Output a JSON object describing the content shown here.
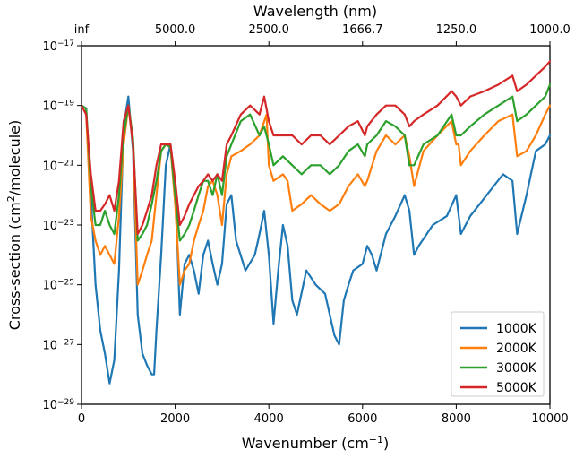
{
  "chart_data": {
    "type": "line",
    "title": "",
    "xlabel": "Wavenumber (cm$^{-1}$)",
    "ylabel": "Cross-section (cm$^{2}$/molecule)",
    "x2label": "Wavelength (nm)",
    "xlim": [
      0,
      10000
    ],
    "ylim": [
      1e-29,
      1e-17
    ],
    "y_scale": "log",
    "grid": false,
    "legend_position": "lower-right",
    "x_ticks": [
      0,
      2000,
      4000,
      6000,
      8000,
      10000
    ],
    "x_tick_labels": [
      "0",
      "2000",
      "4000",
      "6000",
      "8000",
      "10000"
    ],
    "x2_ticks": [
      0,
      2000,
      4000,
      6000,
      8000,
      10000
    ],
    "x2_tick_labels": [
      "inf",
      "5000.0",
      "2500.0",
      "1666.7",
      "1250.0",
      "1000.0"
    ],
    "y_ticks": [
      1e-29,
      1e-27,
      1e-25,
      1e-23,
      1e-21,
      1e-19,
      1e-17
    ],
    "y_tick_labels": [
      "10^-29",
      "10^-27",
      "10^-25",
      "10^-23",
      "10^-21",
      "10^-19",
      "10^-17"
    ],
    "series": [
      {
        "name": "1000K",
        "color": "#1f77b4",
        "points": [
          [
            0,
            1e-19
          ],
          [
            100,
            8e-20
          ],
          [
            200,
            1e-22
          ],
          [
            300,
            1e-25
          ],
          [
            400,
            3e-27
          ],
          [
            500,
            5e-28
          ],
          [
            600,
            5e-29
          ],
          [
            700,
            3e-28
          ],
          [
            800,
            3e-25
          ],
          [
            900,
            2e-20
          ],
          [
            1000,
            2e-19
          ],
          [
            1100,
            3e-21
          ],
          [
            1200,
            1e-26
          ],
          [
            1300,
            5e-28
          ],
          [
            1400,
            2e-28
          ],
          [
            1500,
            1e-28
          ],
          [
            1550,
            1e-28
          ],
          [
            1600,
            3e-27
          ],
          [
            1700,
            1e-24
          ],
          [
            1800,
            1e-21
          ],
          [
            1900,
            5e-21
          ],
          [
            2000,
            2e-22
          ],
          [
            2100,
            1e-26
          ],
          [
            2200,
            5e-25
          ],
          [
            2300,
            1e-24
          ],
          [
            2400,
            3e-25
          ],
          [
            2500,
            5e-26
          ],
          [
            2600,
            1e-24
          ],
          [
            2700,
            3e-24
          ],
          [
            2800,
            5e-25
          ],
          [
            2900,
            1e-25
          ],
          [
            3000,
            5e-25
          ],
          [
            3100,
            5e-23
          ],
          [
            3200,
            1e-22
          ],
          [
            3300,
            3e-24
          ],
          [
            3500,
            3e-25
          ],
          [
            3700,
            1e-24
          ],
          [
            3800,
            5e-24
          ],
          [
            3900,
            3e-23
          ],
          [
            4000,
            1e-24
          ],
          [
            4100,
            5e-27
          ],
          [
            4200,
            3e-25
          ],
          [
            4300,
            1e-23
          ],
          [
            4400,
            2e-24
          ],
          [
            4500,
            3e-26
          ],
          [
            4600,
            1e-26
          ],
          [
            4800,
            3e-25
          ],
          [
            5000,
            1e-25
          ],
          [
            5200,
            5e-26
          ],
          [
            5400,
            2e-27
          ],
          [
            5500,
            1e-27
          ],
          [
            5600,
            3e-26
          ],
          [
            5700,
            1e-25
          ],
          [
            5800,
            3e-25
          ],
          [
            6000,
            5e-25
          ],
          [
            6100,
            2e-24
          ],
          [
            6200,
            1e-24
          ],
          [
            6300,
            3e-25
          ],
          [
            6500,
            5e-24
          ],
          [
            6700,
            2e-23
          ],
          [
            6900,
            1e-22
          ],
          [
            7000,
            3e-23
          ],
          [
            7100,
            1e-24
          ],
          [
            7200,
            2e-24
          ],
          [
            7500,
            1e-23
          ],
          [
            7800,
            2e-23
          ],
          [
            8000,
            1e-22
          ],
          [
            8100,
            5e-24
          ],
          [
            8300,
            2e-23
          ],
          [
            8500,
            5e-23
          ],
          [
            8800,
            2e-22
          ],
          [
            9000,
            5e-22
          ],
          [
            9200,
            3e-22
          ],
          [
            9300,
            5e-24
          ],
          [
            9500,
            1e-22
          ],
          [
            9700,
            3e-21
          ],
          [
            9900,
            5e-21
          ],
          [
            10000,
            1e-20
          ]
        ]
      },
      {
        "name": "2000K",
        "color": "#ff7f0e",
        "points": [
          [
            0,
            1e-19
          ],
          [
            100,
            5e-20
          ],
          [
            200,
            2e-23
          ],
          [
            300,
            3e-24
          ],
          [
            400,
            1e-24
          ],
          [
            500,
            2e-24
          ],
          [
            600,
            1e-24
          ],
          [
            700,
            5e-25
          ],
          [
            800,
            2e-23
          ],
          [
            900,
            5e-21
          ],
          [
            1000,
            1e-19
          ],
          [
            1100,
            5e-21
          ],
          [
            1200,
            1e-25
          ],
          [
            1300,
            3e-25
          ],
          [
            1400,
            1e-24
          ],
          [
            1500,
            3e-24
          ],
          [
            1600,
            1e-22
          ],
          [
            1700,
            3e-21
          ],
          [
            1800,
            5e-21
          ],
          [
            1900,
            4e-21
          ],
          [
            2000,
            5e-23
          ],
          [
            2100,
            1e-25
          ],
          [
            2200,
            3e-25
          ],
          [
            2300,
            5e-25
          ],
          [
            2400,
            3e-24
          ],
          [
            2500,
            1e-23
          ],
          [
            2600,
            3e-23
          ],
          [
            2700,
            2e-22
          ],
          [
            2800,
            3e-22
          ],
          [
            2900,
            1e-22
          ],
          [
            3000,
            1e-23
          ],
          [
            3100,
            5e-22
          ],
          [
            3200,
            2e-21
          ],
          [
            3400,
            3e-21
          ],
          [
            3600,
            5e-21
          ],
          [
            3800,
            1e-20
          ],
          [
            3950,
            5e-20
          ],
          [
            4000,
            1e-21
          ],
          [
            4100,
            3e-22
          ],
          [
            4300,
            5e-22
          ],
          [
            4400,
            3e-22
          ],
          [
            4500,
            3e-23
          ],
          [
            4700,
            5e-23
          ],
          [
            4900,
            1e-22
          ],
          [
            5100,
            5e-23
          ],
          [
            5300,
            3e-23
          ],
          [
            5500,
            5e-23
          ],
          [
            5700,
            2e-22
          ],
          [
            5900,
            5e-22
          ],
          [
            6050,
            2e-22
          ],
          [
            6100,
            3e-22
          ],
          [
            6300,
            3e-21
          ],
          [
            6500,
            1e-20
          ],
          [
            6700,
            5e-21
          ],
          [
            6900,
            1e-20
          ],
          [
            7000,
            2e-21
          ],
          [
            7100,
            2e-22
          ],
          [
            7300,
            3e-21
          ],
          [
            7600,
            1e-20
          ],
          [
            7900,
            3e-20
          ],
          [
            8000,
            5e-21
          ],
          [
            8050,
            5e-21
          ],
          [
            8100,
            1e-21
          ],
          [
            8300,
            3e-21
          ],
          [
            8600,
            1e-20
          ],
          [
            8900,
            3e-20
          ],
          [
            9200,
            5e-20
          ],
          [
            9300,
            2e-21
          ],
          [
            9500,
            3e-21
          ],
          [
            9700,
            1e-20
          ],
          [
            9900,
            5e-20
          ],
          [
            10000,
            1e-19
          ]
        ]
      },
      {
        "name": "3000K",
        "color": "#2ca02c",
        "points": [
          [
            0,
            1e-19
          ],
          [
            100,
            8e-20
          ],
          [
            200,
            2e-22
          ],
          [
            300,
            1e-23
          ],
          [
            400,
            1e-23
          ],
          [
            500,
            3e-23
          ],
          [
            600,
            1e-23
          ],
          [
            700,
            5e-24
          ],
          [
            800,
            1e-22
          ],
          [
            900,
            1e-20
          ],
          [
            1000,
            1e-19
          ],
          [
            1100,
            8e-21
          ],
          [
            1200,
            3e-24
          ],
          [
            1300,
            5e-24
          ],
          [
            1400,
            1e-23
          ],
          [
            1500,
            5e-23
          ],
          [
            1600,
            3e-22
          ],
          [
            1700,
            3e-21
          ],
          [
            1800,
            5e-21
          ],
          [
            1900,
            4e-21
          ],
          [
            2000,
            1e-22
          ],
          [
            2100,
            3e-24
          ],
          [
            2200,
            5e-24
          ],
          [
            2300,
            1e-23
          ],
          [
            2400,
            3e-23
          ],
          [
            2500,
            1e-22
          ],
          [
            2600,
            3e-22
          ],
          [
            2700,
            3e-22
          ],
          [
            2800,
            1e-22
          ],
          [
            2900,
            5e-22
          ],
          [
            3000,
            1e-22
          ],
          [
            3100,
            2e-21
          ],
          [
            3200,
            5e-21
          ],
          [
            3400,
            3e-20
          ],
          [
            3600,
            5e-20
          ],
          [
            3800,
            1e-20
          ],
          [
            3900,
            2e-20
          ],
          [
            4000,
            5e-21
          ],
          [
            4100,
            1e-21
          ],
          [
            4300,
            2e-21
          ],
          [
            4500,
            1e-21
          ],
          [
            4700,
            5e-22
          ],
          [
            4900,
            1e-21
          ],
          [
            5100,
            1e-21
          ],
          [
            5300,
            5e-22
          ],
          [
            5500,
            1e-21
          ],
          [
            5700,
            3e-21
          ],
          [
            5900,
            5e-21
          ],
          [
            6050,
            2e-21
          ],
          [
            6100,
            5e-21
          ],
          [
            6300,
            1e-20
          ],
          [
            6500,
            3e-20
          ],
          [
            6700,
            2e-20
          ],
          [
            6900,
            1e-20
          ],
          [
            7000,
            1e-21
          ],
          [
            7100,
            1e-21
          ],
          [
            7300,
            5e-21
          ],
          [
            7600,
            1e-20
          ],
          [
            7900,
            5e-20
          ],
          [
            8000,
            1e-20
          ],
          [
            8100,
            1e-20
          ],
          [
            8300,
            2e-20
          ],
          [
            8600,
            5e-20
          ],
          [
            8900,
            1e-19
          ],
          [
            9200,
            2e-19
          ],
          [
            9300,
            3e-20
          ],
          [
            9500,
            5e-20
          ],
          [
            9700,
            1e-19
          ],
          [
            9900,
            2e-19
          ],
          [
            10000,
            5e-19
          ]
        ]
      },
      {
        "name": "5000K",
        "color": "#d62728",
        "points": [
          [
            0,
            1e-19
          ],
          [
            100,
            5e-20
          ],
          [
            200,
            5e-22
          ],
          [
            300,
            3e-23
          ],
          [
            400,
            3e-23
          ],
          [
            500,
            5e-23
          ],
          [
            600,
            1e-22
          ],
          [
            700,
            3e-23
          ],
          [
            800,
            3e-22
          ],
          [
            900,
            3e-20
          ],
          [
            1000,
            1e-19
          ],
          [
            1100,
            5e-21
          ],
          [
            1200,
            5e-24
          ],
          [
            1300,
            1e-23
          ],
          [
            1400,
            3e-23
          ],
          [
            1500,
            1e-22
          ],
          [
            1600,
            1e-21
          ],
          [
            1700,
            5e-21
          ],
          [
            1800,
            5e-21
          ],
          [
            1900,
            5e-21
          ],
          [
            2000,
            3e-22
          ],
          [
            2100,
            1e-23
          ],
          [
            2200,
            2e-23
          ],
          [
            2300,
            5e-23
          ],
          [
            2400,
            1e-22
          ],
          [
            2500,
            2e-22
          ],
          [
            2600,
            3e-22
          ],
          [
            2700,
            5e-22
          ],
          [
            2800,
            3e-22
          ],
          [
            2900,
            5e-22
          ],
          [
            3000,
            3e-22
          ],
          [
            3100,
            5e-21
          ],
          [
            3200,
            1e-20
          ],
          [
            3400,
            5e-20
          ],
          [
            3600,
            1e-19
          ],
          [
            3800,
            5e-20
          ],
          [
            3900,
            2e-19
          ],
          [
            4000,
            3e-20
          ],
          [
            4100,
            1e-20
          ],
          [
            4300,
            1e-20
          ],
          [
            4500,
            1e-20
          ],
          [
            4700,
            5e-21
          ],
          [
            4900,
            1e-20
          ],
          [
            5100,
            1e-20
          ],
          [
            5300,
            5e-21
          ],
          [
            5500,
            1e-20
          ],
          [
            5700,
            2e-20
          ],
          [
            5900,
            3e-20
          ],
          [
            6050,
            1e-20
          ],
          [
            6100,
            2e-20
          ],
          [
            6300,
            5e-20
          ],
          [
            6500,
            1e-19
          ],
          [
            6700,
            1e-19
          ],
          [
            6900,
            5e-20
          ],
          [
            7000,
            2e-20
          ],
          [
            7100,
            3e-20
          ],
          [
            7300,
            5e-20
          ],
          [
            7600,
            1e-19
          ],
          [
            7900,
            3e-19
          ],
          [
            8000,
            2e-19
          ],
          [
            8100,
            1e-19
          ],
          [
            8300,
            2e-19
          ],
          [
            8600,
            3e-19
          ],
          [
            8900,
            5e-19
          ],
          [
            9200,
            1e-18
          ],
          [
            9300,
            3e-19
          ],
          [
            9500,
            5e-19
          ],
          [
            9700,
            1e-18
          ],
          [
            9900,
            2e-18
          ],
          [
            10000,
            3e-18
          ]
        ]
      }
    ]
  }
}
